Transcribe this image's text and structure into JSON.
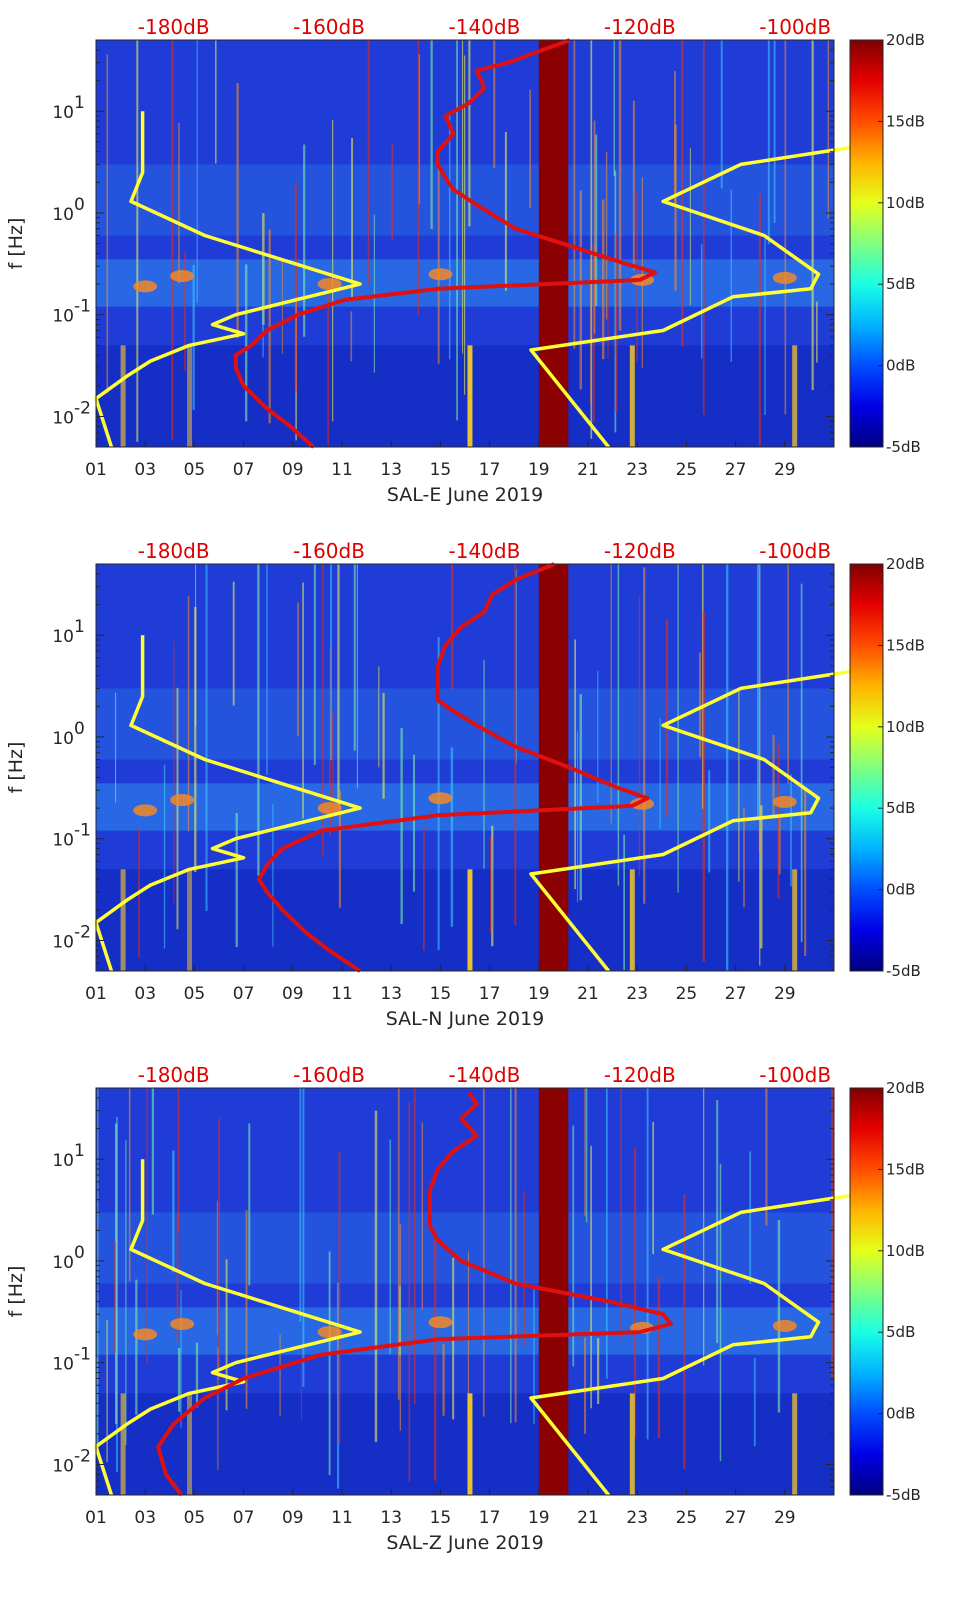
{
  "chart_data": [
    {
      "type": "heatmap",
      "title": "",
      "xlabel": "SAL-E June 2019",
      "ylabel": "f [Hz]",
      "x_unit": "day of June 2019",
      "xlim": [
        1,
        31
      ],
      "ylim_log10": [
        -2.3,
        1.7
      ],
      "x_tick_values": [
        1,
        3,
        5,
        7,
        9,
        11,
        13,
        15,
        17,
        19,
        21,
        23,
        25,
        27,
        29
      ],
      "x_tick_labels": [
        "01",
        "03",
        "05",
        "07",
        "09",
        "11",
        "13",
        "15",
        "17",
        "19",
        "21",
        "23",
        "25",
        "27",
        "29"
      ],
      "y_ticks": [
        {
          "pow": -2,
          "label": "10",
          "exp": "-2"
        },
        {
          "pow": -1,
          "label": "10",
          "exp": "-1"
        },
        {
          "pow": 0,
          "label": "10",
          "exp": "0"
        },
        {
          "pow": 1,
          "label": "10",
          "exp": "1"
        }
      ],
      "top_axis_values": [
        -180,
        -160,
        -140,
        -120,
        -100
      ],
      "top_axis_labels": [
        "-180dB",
        "-160dB",
        "-140dB",
        "-120dB",
        "-100dB"
      ],
      "top_axis_range_db": [
        -190,
        -95
      ],
      "colorbar": {
        "min": -5,
        "max": 20,
        "tick_values": [
          20,
          15,
          10,
          5,
          0,
          -5
        ],
        "tick_labels": [
          "20dB",
          "15dB",
          "10dB",
          "5dB",
          "0dB",
          "-5dB"
        ]
      },
      "gap_days": [
        [
          19,
          20.2
        ]
      ],
      "series": [
        {
          "name": "noise-model-low",
          "color": "#ffff33",
          "x_unit": "dB",
          "points": [
            [
              -184,
              10
            ],
            [
              -184,
              2.5
            ],
            [
              -185.5,
              1.3
            ],
            [
              -176,
              0.6
            ],
            [
              -156,
              0.2
            ],
            [
              -172,
              0.1
            ],
            [
              -175,
              0.08
            ],
            [
              -171,
              0.065
            ],
            [
              -178,
              0.05
            ],
            [
              -183,
              0.035
            ],
            [
              -186,
              0.025
            ],
            [
              -190,
              0.015
            ],
            [
              -188,
              0.005
            ]
          ]
        },
        {
          "name": "noise-model-high",
          "color": "#ffff33",
          "x_unit": "dB",
          "points": [
            [
              -89,
              10
            ],
            [
              -92,
              4.5
            ],
            [
              -107,
              3
            ],
            [
              -117,
              1.3
            ],
            [
              -104,
              0.6
            ],
            [
              -97,
              0.25
            ],
            [
              -98,
              0.18
            ],
            [
              -108,
              0.15
            ],
            [
              -117,
              0.07
            ],
            [
              -134,
              0.045
            ],
            [
              -124,
              0.005
            ]
          ]
        },
        {
          "name": "station-psd",
          "color": "#e01010",
          "x_unit": "dB",
          "points": [
            [
              -129,
              50
            ],
            [
              -137,
              30
            ],
            [
              -141,
              25
            ],
            [
              -140,
              17
            ],
            [
              -142,
              12
            ],
            [
              -145,
              9
            ],
            [
              -144,
              6
            ],
            [
              -146,
              4
            ],
            [
              -146,
              3
            ],
            [
              -145,
              2.2
            ],
            [
              -144,
              1.7
            ],
            [
              -141,
              1.2
            ],
            [
              -136,
              0.7
            ],
            [
              -128,
              0.45
            ],
            [
              -122,
              0.32
            ],
            [
              -118,
              0.26
            ],
            [
              -120,
              0.22
            ],
            [
              -146,
              0.18
            ],
            [
              -158,
              0.14
            ],
            [
              -164,
              0.1
            ],
            [
              -168,
              0.07
            ],
            [
              -170,
              0.05
            ],
            [
              -172,
              0.04
            ],
            [
              -172,
              0.03
            ],
            [
              -171,
              0.02
            ],
            [
              -168,
              0.012
            ],
            [
              -165,
              0.008
            ],
            [
              -162,
              0.005
            ]
          ]
        }
      ]
    },
    {
      "type": "heatmap",
      "title": "",
      "xlabel": "SAL-N June 2019",
      "ylabel": "f [Hz]",
      "x_unit": "day of June 2019",
      "xlim": [
        1,
        31
      ],
      "ylim_log10": [
        -2.3,
        1.7
      ],
      "x_tick_values": [
        1,
        3,
        5,
        7,
        9,
        11,
        13,
        15,
        17,
        19,
        21,
        23,
        25,
        27,
        29
      ],
      "x_tick_labels": [
        "01",
        "03",
        "05",
        "07",
        "09",
        "11",
        "13",
        "15",
        "17",
        "19",
        "21",
        "23",
        "25",
        "27",
        "29"
      ],
      "y_ticks": [
        {
          "pow": -2,
          "label": "10",
          "exp": "-2"
        },
        {
          "pow": -1,
          "label": "10",
          "exp": "-1"
        },
        {
          "pow": 0,
          "label": "10",
          "exp": "0"
        },
        {
          "pow": 1,
          "label": "10",
          "exp": "1"
        }
      ],
      "top_axis_values": [
        -180,
        -160,
        -140,
        -120,
        -100
      ],
      "top_axis_labels": [
        "-180dB",
        "-160dB",
        "-140dB",
        "-120dB",
        "-100dB"
      ],
      "top_axis_range_db": [
        -190,
        -95
      ],
      "colorbar": {
        "min": -5,
        "max": 20,
        "tick_values": [
          20,
          15,
          10,
          5,
          0,
          -5
        ],
        "tick_labels": [
          "20dB",
          "15dB",
          "10dB",
          "5dB",
          "0dB",
          "-5dB"
        ]
      },
      "gap_days": [
        [
          19,
          20.2
        ]
      ],
      "series": [
        {
          "name": "noise-model-low",
          "color": "#ffff33",
          "x_unit": "dB",
          "points": [
            [
              -184,
              10
            ],
            [
              -184,
              2.5
            ],
            [
              -185.5,
              1.3
            ],
            [
              -176,
              0.6
            ],
            [
              -156,
              0.2
            ],
            [
              -172,
              0.1
            ],
            [
              -175,
              0.08
            ],
            [
              -171,
              0.065
            ],
            [
              -178,
              0.05
            ],
            [
              -183,
              0.035
            ],
            [
              -186,
              0.025
            ],
            [
              -190,
              0.015
            ],
            [
              -188,
              0.005
            ]
          ]
        },
        {
          "name": "noise-model-high",
          "color": "#ffff33",
          "x_unit": "dB",
          "points": [
            [
              -89,
              10
            ],
            [
              -92,
              4.5
            ],
            [
              -107,
              3
            ],
            [
              -117,
              1.3
            ],
            [
              -104,
              0.6
            ],
            [
              -97,
              0.25
            ],
            [
              -98,
              0.18
            ],
            [
              -108,
              0.15
            ],
            [
              -117,
              0.07
            ],
            [
              -134,
              0.045
            ],
            [
              -124,
              0.005
            ]
          ]
        },
        {
          "name": "station-psd",
          "color": "#e01010",
          "x_unit": "dB",
          "points": [
            [
              -131,
              50
            ],
            [
              -136,
              35
            ],
            [
              -139,
              25
            ],
            [
              -140,
              17
            ],
            [
              -143,
              12
            ],
            [
              -145,
              8
            ],
            [
              -146,
              5
            ],
            [
              -146,
              3
            ],
            [
              -146,
              2.3
            ],
            [
              -144,
              1.8
            ],
            [
              -141,
              1.3
            ],
            [
              -136,
              0.8
            ],
            [
              -129,
              0.5
            ],
            [
              -123,
              0.32
            ],
            [
              -119,
              0.25
            ],
            [
              -121,
              0.21
            ],
            [
              -146,
              0.17
            ],
            [
              -161,
              0.12
            ],
            [
              -166,
              0.08
            ],
            [
              -168,
              0.055
            ],
            [
              -169,
              0.04
            ],
            [
              -168,
              0.03
            ],
            [
              -166,
              0.02
            ],
            [
              -163,
              0.012
            ],
            [
              -160,
              0.008
            ],
            [
              -156,
              0.005
            ]
          ]
        }
      ]
    },
    {
      "type": "heatmap",
      "title": "",
      "xlabel": "SAL-Z June 2019",
      "ylabel": "f [Hz]",
      "x_unit": "day of June 2019",
      "xlim": [
        1,
        31
      ],
      "ylim_log10": [
        -2.3,
        1.7
      ],
      "x_tick_values": [
        1,
        3,
        5,
        7,
        9,
        11,
        13,
        15,
        17,
        19,
        21,
        23,
        25,
        27,
        29
      ],
      "x_tick_labels": [
        "01",
        "03",
        "05",
        "07",
        "09",
        "11",
        "13",
        "15",
        "17",
        "19",
        "21",
        "23",
        "25",
        "27",
        "29"
      ],
      "y_ticks": [
        {
          "pow": -2,
          "label": "10",
          "exp": "-2"
        },
        {
          "pow": -1,
          "label": "10",
          "exp": "-1"
        },
        {
          "pow": 0,
          "label": "10",
          "exp": "0"
        },
        {
          "pow": 1,
          "label": "10",
          "exp": "1"
        }
      ],
      "top_axis_values": [
        -180,
        -160,
        -140,
        -120,
        -100
      ],
      "top_axis_labels": [
        "-180dB",
        "-160dB",
        "-140dB",
        "-120dB",
        "-100dB"
      ],
      "top_axis_range_db": [
        -190,
        -95
      ],
      "colorbar": {
        "min": -5,
        "max": 20,
        "tick_values": [
          20,
          15,
          10,
          5,
          0,
          -5
        ],
        "tick_labels": [
          "20dB",
          "15dB",
          "10dB",
          "5dB",
          "0dB",
          "-5dB"
        ]
      },
      "gap_days": [
        [
          19,
          20.2
        ]
      ],
      "series": [
        {
          "name": "noise-model-low",
          "color": "#ffff33",
          "x_unit": "dB",
          "points": [
            [
              -184,
              10
            ],
            [
              -184,
              2.5
            ],
            [
              -185.5,
              1.3
            ],
            [
              -176,
              0.6
            ],
            [
              -156,
              0.2
            ],
            [
              -172,
              0.1
            ],
            [
              -175,
              0.08
            ],
            [
              -171,
              0.065
            ],
            [
              -178,
              0.05
            ],
            [
              -183,
              0.035
            ],
            [
              -186,
              0.025
            ],
            [
              -190,
              0.015
            ],
            [
              -188,
              0.005
            ]
          ]
        },
        {
          "name": "noise-model-high",
          "color": "#ffff33",
          "x_unit": "dB",
          "points": [
            [
              -89,
              10
            ],
            [
              -92,
              4.5
            ],
            [
              -107,
              3
            ],
            [
              -117,
              1.3
            ],
            [
              -104,
              0.6
            ],
            [
              -97,
              0.25
            ],
            [
              -98,
              0.18
            ],
            [
              -108,
              0.15
            ],
            [
              -117,
              0.07
            ],
            [
              -134,
              0.045
            ],
            [
              -124,
              0.005
            ]
          ]
        },
        {
          "name": "station-psd",
          "color": "#e01010",
          "x_unit": "dB",
          "points": [
            [
              -142,
              45
            ],
            [
              -141,
              35
            ],
            [
              -143,
              25
            ],
            [
              -141,
              17
            ],
            [
              -144,
              12
            ],
            [
              -146,
              8
            ],
            [
              -147,
              5
            ],
            [
              -147,
              3
            ],
            [
              -147,
              2.2
            ],
            [
              -146,
              1.6
            ],
            [
              -143,
              1.0
            ],
            [
              -136,
              0.6
            ],
            [
              -124,
              0.4
            ],
            [
              -117,
              0.3
            ],
            [
              -116,
              0.24
            ],
            [
              -120,
              0.2
            ],
            [
              -146,
              0.17
            ],
            [
              -161,
              0.12
            ],
            [
              -171,
              0.07
            ],
            [
              -176,
              0.045
            ],
            [
              -180,
              0.025
            ],
            [
              -182,
              0.015
            ],
            [
              -181,
              0.008
            ],
            [
              -179,
              0.005
            ]
          ]
        }
      ]
    }
  ]
}
